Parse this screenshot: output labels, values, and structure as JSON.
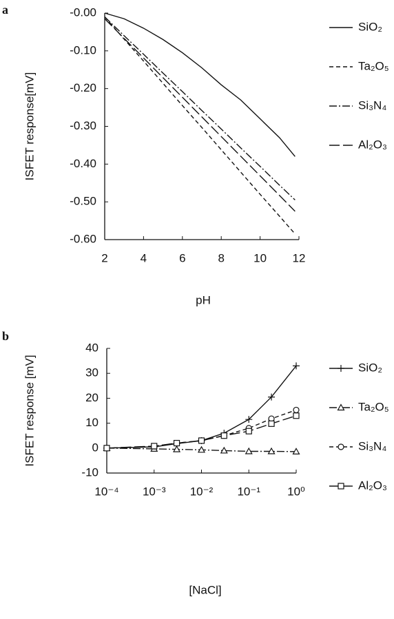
{
  "chart_data": [
    {
      "type": "line",
      "panel": "a",
      "xlabel": "pH",
      "ylabel": "ISFET response[mV]",
      "x": [
        2,
        3,
        4,
        5,
        6,
        7,
        8,
        9,
        10,
        11,
        11.8
      ],
      "xlim": [
        2,
        12
      ],
      "xticks": [
        2,
        4,
        6,
        8,
        10,
        12
      ],
      "ylim": [
        -0.6,
        0
      ],
      "yticks": [
        {
          "value": 0,
          "label": "-0.00"
        },
        {
          "value": -0.1,
          "label": "-0.10"
        },
        {
          "value": -0.2,
          "label": "-0.20"
        },
        {
          "value": -0.3,
          "label": "-0.30"
        },
        {
          "value": -0.4,
          "label": "-0.40"
        },
        {
          "value": -0.5,
          "label": "-0.50"
        },
        {
          "value": -0.6,
          "label": "-0.60"
        }
      ],
      "series": [
        {
          "name": "SiO₂",
          "color": "#111111",
          "dash": "solid",
          "values": [
            0,
            -0.015,
            -0.04,
            -0.07,
            -0.105,
            -0.145,
            -0.19,
            -0.23,
            -0.28,
            -0.33,
            -0.38
          ]
        },
        {
          "name": "Ta₂O₅",
          "color": "#111111",
          "dash": "dashed",
          "values": [
            -0.01,
            -0.069,
            -0.127,
            -0.186,
            -0.245,
            -0.303,
            -0.362,
            -0.421,
            -0.48,
            -0.538,
            -0.585
          ]
        },
        {
          "name": "Si₃N₄",
          "color": "#111111",
          "dash": "dashdot",
          "values": [
            -0.01,
            -0.06,
            -0.109,
            -0.159,
            -0.208,
            -0.258,
            -0.307,
            -0.357,
            -0.406,
            -0.456,
            -0.495
          ]
        },
        {
          "name": "Al₂O₃",
          "color": "#111111",
          "dash": "longdash",
          "values": [
            -0.015,
            -0.067,
            -0.119,
            -0.171,
            -0.223,
            -0.275,
            -0.327,
            -0.379,
            -0.431,
            -0.483,
            -0.525
          ]
        }
      ]
    },
    {
      "type": "line",
      "panel": "b",
      "xlabel": "[NaCl]",
      "ylabel": "ISFET response [mV]",
      "xscale": "log",
      "x": [
        0.0001,
        0.001,
        0.003,
        0.01,
        0.03,
        0.1,
        0.3,
        1
      ],
      "xlim": [
        0.0001,
        1
      ],
      "xticks": [
        {
          "value": 0.0001,
          "label": "10⁻⁴"
        },
        {
          "value": 0.001,
          "label": "10⁻³"
        },
        {
          "value": 0.01,
          "label": "10⁻²"
        },
        {
          "value": 0.1,
          "label": "10⁻¹"
        },
        {
          "value": 1,
          "label": "10⁰"
        }
      ],
      "ylim": [
        -10,
        40
      ],
      "yticks": [
        -10,
        0,
        10,
        20,
        30,
        40
      ],
      "series": [
        {
          "name": "SiO₂",
          "color": "#111111",
          "dash": "solid",
          "marker": "plus",
          "values": [
            0,
            0.5,
            1.8,
            3,
            6,
            11.5,
            20.5,
            33
          ]
        },
        {
          "name": "Ta₂O₅",
          "color": "#111111",
          "dash": "dashdot",
          "marker": "triangle",
          "values": [
            0,
            -0.3,
            -0.5,
            -0.7,
            -1,
            -1.3,
            -1.3,
            -1.4
          ]
        },
        {
          "name": "Si₃N₄",
          "color": "#111111",
          "dash": "dashed",
          "marker": "circle",
          "values": [
            0,
            0.7,
            2,
            3,
            5,
            8,
            11.8,
            15.3
          ]
        },
        {
          "name": "Al₂O₃",
          "color": "#111111",
          "dash": "longdash",
          "marker": "square",
          "values": [
            0,
            0.8,
            2,
            3,
            5,
            6.8,
            9.8,
            13
          ]
        }
      ]
    }
  ]
}
